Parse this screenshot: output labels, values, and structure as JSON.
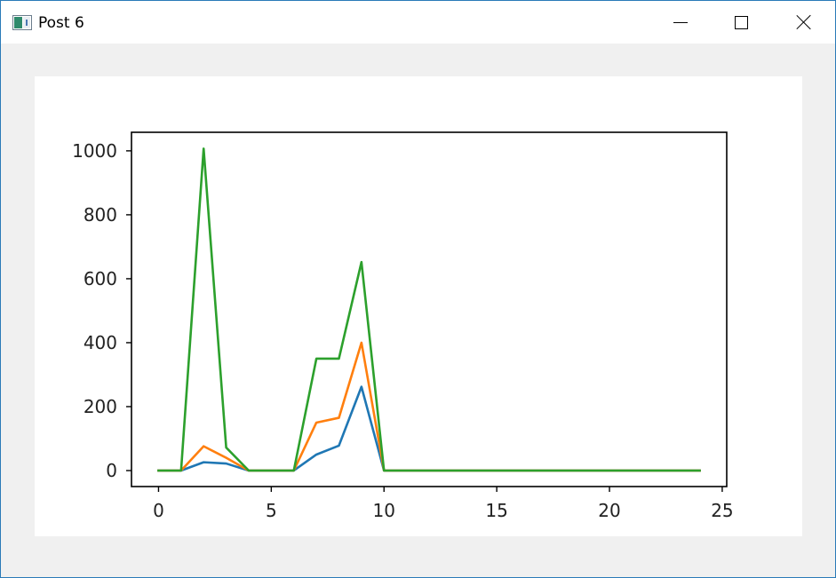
{
  "window": {
    "title": "Post 6",
    "controls": {
      "minimize": "minimize",
      "maximize": "maximize",
      "close": "close"
    },
    "icon": "app-figure-icon"
  },
  "chart_data": {
    "type": "line",
    "title": "",
    "xlabel": "",
    "ylabel": "",
    "xlim": [
      -1.2,
      25.2
    ],
    "ylim": [
      -50,
      1058
    ],
    "x_ticks": [
      0,
      5,
      10,
      15,
      20,
      25
    ],
    "y_ticks": [
      0,
      200,
      400,
      600,
      800,
      1000
    ],
    "grid": false,
    "legend": "none",
    "x": [
      0,
      1,
      2,
      3,
      4,
      5,
      6,
      7,
      8,
      9,
      10,
      11,
      12,
      13,
      14,
      15,
      16,
      17,
      18,
      19,
      20,
      21,
      22,
      23,
      24
    ],
    "series": [
      {
        "color": "#1f77b4",
        "values": [
          0,
          0,
          26,
          22,
          0,
          0,
          0,
          50,
          78,
          262,
          0,
          0,
          0,
          0,
          0,
          0,
          0,
          0,
          0,
          0,
          0,
          0,
          0,
          0,
          0
        ]
      },
      {
        "color": "#ff7f0e",
        "values": [
          0,
          0,
          76,
          40,
          0,
          0,
          0,
          150,
          165,
          400,
          0,
          0,
          0,
          0,
          0,
          0,
          0,
          0,
          0,
          0,
          0,
          0,
          0,
          0,
          0
        ]
      },
      {
        "color": "#2ca02c",
        "values": [
          0,
          0,
          1007,
          72,
          0,
          0,
          0,
          350,
          350,
          652,
          0,
          0,
          0,
          0,
          0,
          0,
          0,
          0,
          0,
          0,
          0,
          0,
          0,
          0,
          0
        ]
      }
    ]
  }
}
